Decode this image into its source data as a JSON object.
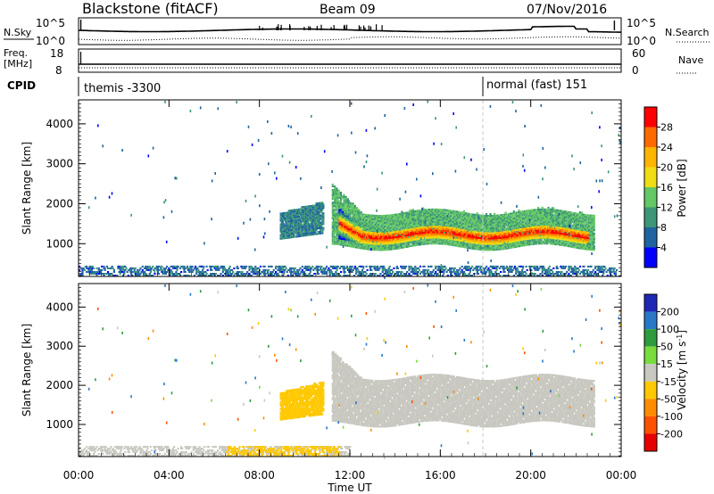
{
  "header": {
    "radar": "Blackstone (fitACF)",
    "beam": "Beam 09",
    "date": "07/Nov/2016"
  },
  "noise_panel": {
    "left_label": "N.Sky",
    "right_label": "N.Search",
    "ticks": [
      "10^5",
      "10^0"
    ]
  },
  "freq_panel": {
    "left_label_1": "Freq.",
    "left_label_2": "[MHz]",
    "left_ticks": [
      "18",
      "8"
    ],
    "right_label": "Nave",
    "right_ticks": [
      "60",
      "0"
    ]
  },
  "cpid_panel": {
    "label": "CPID",
    "segments": [
      {
        "name": "themis -3300",
        "start_hour": 0.0
      },
      {
        "name": "normal (fast) 151",
        "start_hour": 18.0
      }
    ]
  },
  "x_axis": {
    "label": "Time UT",
    "ticks": [
      "00:00",
      "04:00",
      "08:00",
      "12:00",
      "16:00",
      "20:00",
      "00:00"
    ],
    "range_hours": [
      0,
      24
    ]
  },
  "power_colorbar": {
    "label": "Power [dB]",
    "ticks": [
      "28",
      "24",
      "20",
      "16",
      "12",
      "8",
      "4"
    ],
    "colors": [
      "#ff0000",
      "#ff6a00",
      "#ffb400",
      "#f0dc14",
      "#64c864",
      "#3c9678",
      "#1e64a0",
      "#0000ff"
    ]
  },
  "velocity_colorbar": {
    "label": "Velocity [m s^-1]",
    "label_main": "Velocity [",
    "label_unit": "m s",
    "label_exp": "-1",
    "label_close": "]",
    "ticks": [
      "200",
      "100",
      "50",
      "15",
      "-15",
      "-50",
      "-100",
      "-200"
    ],
    "colors": [
      "#1e28b4",
      "#2878c8",
      "#2c9c3c",
      "#78dc3c",
      "#c8c8c0",
      "#ffc800",
      "#ff8c00",
      "#ff5000",
      "#e60000"
    ]
  },
  "chart_data": [
    {
      "type": "heatmap",
      "title": "Power",
      "xlabel": "Time UT",
      "ylabel": "Slant Range [km]",
      "xlim": [
        0,
        24
      ],
      "ylim": [
        180,
        4600
      ],
      "yticks": [
        1000,
        2000,
        3000,
        4000
      ],
      "zlabel": "Power [dB]",
      "zlim": [
        0,
        32
      ],
      "features": [
        {
          "name": "near-range clutter",
          "t0": 0.0,
          "t1": 23.8,
          "r0": 180,
          "r1": 420,
          "value": 6
        },
        {
          "name": "echo 09-10UT",
          "t0": 8.9,
          "t1": 10.8,
          "r0": 1100,
          "r1": 1750,
          "value": 8
        },
        {
          "name": "main band edge",
          "t0": 11.2,
          "t1": 22.8,
          "r0": 900,
          "r1": 1800,
          "value": 12
        },
        {
          "name": "main band core",
          "t0": 11.5,
          "t1": 22.5,
          "r0": 1050,
          "r1": 1350,
          "value": 26
        }
      ]
    },
    {
      "type": "heatmap",
      "title": "Velocity",
      "xlabel": "Time UT",
      "ylabel": "Slant Range [km]",
      "xlim": [
        0,
        24
      ],
      "ylim": [
        180,
        4600
      ],
      "yticks": [
        1000,
        2000,
        3000,
        4000
      ],
      "zlabel": "Velocity [m s-1]",
      "zlim": [
        -250,
        250
      ],
      "features": [
        {
          "name": "near-range ground scatter",
          "t0": 0.0,
          "t1": 12.0,
          "r0": 180,
          "r1": 450,
          "value": 0
        },
        {
          "name": "near-range westward flow",
          "t0": 6.5,
          "t1": 11.5,
          "r0": 180,
          "r1": 420,
          "value": -30
        },
        {
          "name": "echo 09-10UT",
          "t0": 8.9,
          "t1": 10.8,
          "r0": 1100,
          "r1": 1800,
          "value": -40
        },
        {
          "name": "ground scatter band",
          "t0": 11.2,
          "t1": 22.8,
          "r0": 1000,
          "r1": 2200,
          "value": 0
        }
      ]
    }
  ]
}
